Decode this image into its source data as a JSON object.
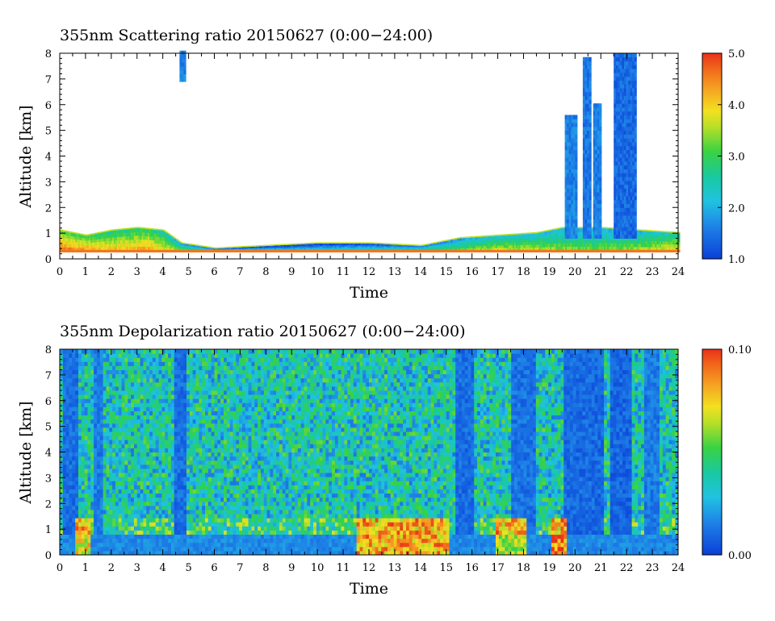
{
  "chart_data": [
    {
      "type": "heatmap",
      "title": "355nm Scattering ratio  20150627 (0:00−24:00)",
      "xlabel": "Time",
      "ylabel": "Altitude [km]",
      "xlim": [
        0,
        24
      ],
      "ylim": [
        0,
        8
      ],
      "x_ticks": [
        "0",
        "1",
        "2",
        "3",
        "4",
        "5",
        "6",
        "7",
        "8",
        "9",
        "10",
        "11",
        "12",
        "13",
        "14",
        "15",
        "16",
        "17",
        "18",
        "19",
        "20",
        "21",
        "22",
        "23",
        "24"
      ],
      "y_ticks": [
        "0",
        "1",
        "2",
        "3",
        "4",
        "5",
        "6",
        "7",
        "8"
      ],
      "colorbar": {
        "min": 1.0,
        "max": 5.0,
        "ticks": [
          "1.0",
          "2.0",
          "3.0",
          "4.0",
          "5.0"
        ]
      },
      "features": {
        "boundary_layer_top_km": [
          {
            "t": 0,
            "h": 1.1
          },
          {
            "t": 1,
            "h": 0.9
          },
          {
            "t": 2,
            "h": 1.1
          },
          {
            "t": 3,
            "h": 1.2
          },
          {
            "t": 4,
            "h": 1.1
          },
          {
            "t": 4.7,
            "h": 0.6
          },
          {
            "t": 6,
            "h": 0.4
          },
          {
            "t": 8,
            "h": 0.5
          },
          {
            "t": 10,
            "h": 0.6
          },
          {
            "t": 12,
            "h": 0.6
          },
          {
            "t": 14,
            "h": 0.5
          },
          {
            "t": 15.5,
            "h": 0.8
          },
          {
            "t": 17,
            "h": 0.9
          },
          {
            "t": 18.5,
            "h": 1.0
          },
          {
            "t": 19.5,
            "h": 1.2
          },
          {
            "t": 21,
            "h": 1.2
          },
          {
            "t": 22.5,
            "h": 1.1
          },
          {
            "t": 24,
            "h": 1.0
          }
        ],
        "aerosol_layer_value": [
          {
            "t": 0,
            "v": 4.5
          },
          {
            "t": 2,
            "v": 4.0
          },
          {
            "t": 3.5,
            "v": 4.2
          },
          {
            "t": 4.7,
            "v": 3.2
          },
          {
            "t": 6,
            "v": 2.6
          },
          {
            "t": 9,
            "v": 2.3
          },
          {
            "t": 12,
            "v": 2.5
          },
          {
            "t": 15,
            "v": 3.0
          },
          {
            "t": 17,
            "v": 3.6
          },
          {
            "t": 19,
            "v": 3.4
          },
          {
            "t": 20.5,
            "v": 3.2
          },
          {
            "t": 22,
            "v": 3.3
          },
          {
            "t": 24,
            "v": 3.8
          }
        ],
        "cloud_columns": [
          {
            "t0": 19.6,
            "t1": 20.0,
            "h0": 0.8,
            "h1": 5.6,
            "v": 1.6
          },
          {
            "t0": 20.3,
            "t1": 20.6,
            "h0": 0.8,
            "h1": 7.8,
            "v": 1.5
          },
          {
            "t0": 20.7,
            "t1": 21.0,
            "h0": 0.8,
            "h1": 6.0,
            "v": 1.6
          },
          {
            "t0": 21.5,
            "t1": 22.3,
            "h0": 0.8,
            "h1": 8.0,
            "v": 1.4
          },
          {
            "t0": 4.65,
            "t1": 4.85,
            "h0": 6.9,
            "h1": 8.0,
            "v": 1.6
          }
        ]
      }
    },
    {
      "type": "heatmap",
      "title": "355nm Depolarization ratio  20150627 (0:00−24:00)",
      "xlabel": "Time",
      "ylabel": "Altitude [km]",
      "xlim": [
        0,
        24
      ],
      "ylim": [
        0,
        8
      ],
      "x_ticks": [
        "0",
        "1",
        "2",
        "3",
        "4",
        "5",
        "6",
        "7",
        "8",
        "9",
        "10",
        "11",
        "12",
        "13",
        "14",
        "15",
        "16",
        "17",
        "18",
        "19",
        "20",
        "21",
        "22",
        "23",
        "24"
      ],
      "y_ticks": [
        "0",
        "1",
        "2",
        "3",
        "4",
        "5",
        "6",
        "7",
        "8"
      ],
      "colorbar": {
        "min": 0.0,
        "max": 0.1,
        "ticks": [
          "0.00",
          "0.10"
        ]
      },
      "features": {
        "background_level": 0.035,
        "low_clear_bands": [
          {
            "t0": 0.1,
            "t1": 0.6,
            "v": 0.005
          },
          {
            "t0": 1.3,
            "t1": 1.6,
            "v": 0.008
          },
          {
            "t0": 4.4,
            "t1": 4.9,
            "v": 0.005
          },
          {
            "t0": 15.3,
            "t1": 16.0,
            "v": 0.005
          },
          {
            "t0": 17.5,
            "t1": 18.4,
            "v": 0.006
          },
          {
            "t0": 19.5,
            "t1": 21.0,
            "v": 0.004
          },
          {
            "t0": 21.3,
            "t1": 22.1,
            "v": 0.003
          },
          {
            "t0": 22.6,
            "t1": 23.2,
            "v": 0.008
          }
        ],
        "near_surface_high": [
          {
            "t0": 0.5,
            "t1": 1.2,
            "v": 0.08
          },
          {
            "t0": 11.5,
            "t1": 15.0,
            "v": 0.09
          },
          {
            "t0": 16.8,
            "t1": 18.0,
            "v": 0.07
          },
          {
            "t0": 19.0,
            "t1": 19.6,
            "v": 0.1
          }
        ]
      }
    }
  ]
}
